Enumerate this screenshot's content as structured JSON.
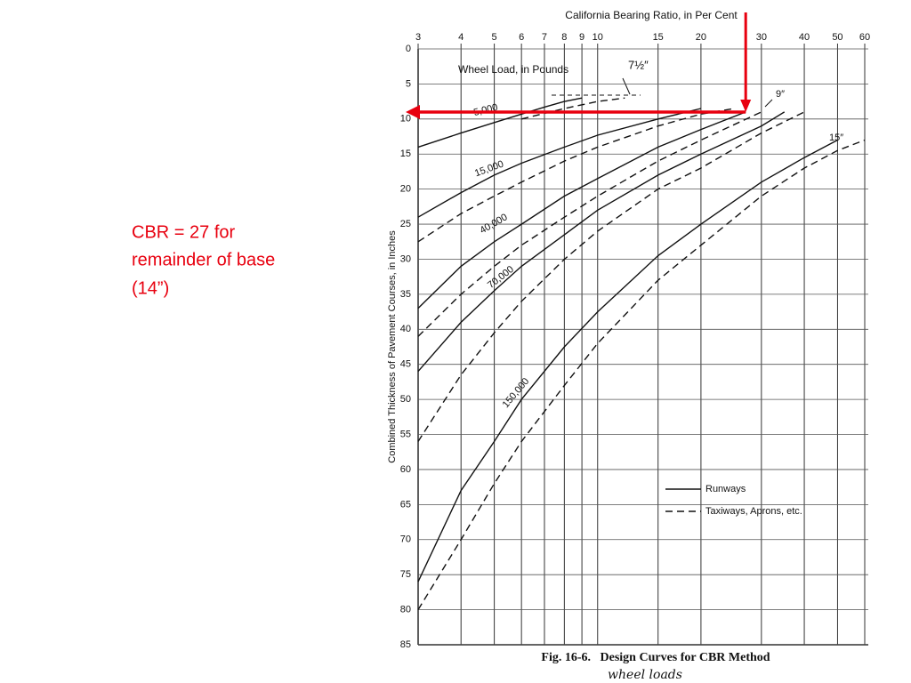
{
  "note_lines": [
    "CBR = 27 for",
    "remainder of base",
    "(14”)"
  ],
  "chart_data": {
    "type": "line",
    "title": "California Bearing Ratio, in Per Cent",
    "y_label": "Combined Thickness of Pavement Courses, in Inches",
    "caption": "Fig. 16-6.   Design Curves for CBR Method",
    "handwritten": "wheel loads",
    "x_log": true,
    "xlim": [
      3,
      60
    ],
    "xticks": [
      3,
      4,
      5,
      6,
      7,
      8,
      9,
      10,
      15,
      20,
      30,
      40,
      50,
      60
    ],
    "ylim": [
      0,
      85
    ],
    "y_inverted": true,
    "yticks": [
      0,
      5,
      10,
      15,
      20,
      25,
      30,
      35,
      40,
      45,
      50,
      55,
      60,
      65,
      70,
      75,
      80,
      85
    ],
    "grid": true,
    "color": "#111111",
    "annotations": [
      "Wheel Load, in Pounds",
      "7½″",
      "9″",
      "15″"
    ],
    "legend": [
      "Runways",
      "Taxiways, Aprons, etc."
    ],
    "legend_dashed": [
      false,
      true
    ],
    "series": [
      {
        "name": "5,000",
        "lines": [
          {
            "x": [
              3,
              4,
              5,
              6,
              7,
              8,
              9
            ],
            "values": [
              14,
              12,
              10.5,
              9.3,
              8.3,
              7.5,
              7
            ]
          },
          {
            "x": [
              6,
              8,
              10,
              12
            ],
            "values": [
              10,
              8.5,
              7.5,
              7
            ]
          }
        ]
      },
      {
        "name": "15,000",
        "lines": [
          {
            "x": [
              3,
              4,
              5,
              6,
              8,
              10,
              15,
              20
            ],
            "values": [
              24,
              20.5,
              18,
              16.3,
              14,
              12.3,
              10,
              8.5
            ]
          },
          {
            "x": [
              3,
              4,
              5,
              6,
              8,
              10,
              15,
              20,
              25
            ],
            "values": [
              27.5,
              23.5,
              21,
              19,
              16,
              14,
              11,
              9.3,
              8.5
            ]
          }
        ]
      },
      {
        "name": "40,000",
        "lines": [
          {
            "x": [
              3,
              4,
              5,
              6,
              8,
              10,
              15,
              20,
              27
            ],
            "values": [
              37,
              31,
              27.5,
              25,
              21,
              18.5,
              14,
              11.5,
              9
            ]
          },
          {
            "x": [
              3,
              4,
              5,
              6,
              8,
              10,
              15,
              20,
              30
            ],
            "values": [
              41,
              35,
              31,
              28,
              24,
              21,
              16,
              13,
              9
            ]
          }
        ]
      },
      {
        "name": "70,000",
        "lines": [
          {
            "x": [
              3,
              4,
              5,
              6,
              8,
              10,
              15,
              20,
              30,
              35
            ],
            "values": [
              46,
              39,
              34.5,
              31,
              26.5,
              23,
              18,
              15,
              11,
              9
            ]
          },
          {
            "x": [
              3,
              4,
              5,
              6,
              8,
              10,
              15,
              20,
              30,
              40
            ],
            "values": [
              56,
              46.5,
              40.5,
              36,
              30,
              26,
              20,
              17,
              12,
              9
            ]
          }
        ]
      },
      {
        "name": "150,000",
        "lines": [
          {
            "x": [
              3,
              4,
              5,
              6,
              8,
              10,
              15,
              20,
              30,
              40,
              50
            ],
            "values": [
              76,
              63,
              56,
              50,
              42.5,
              37.5,
              29.5,
              25,
              19,
              15.5,
              13
            ]
          },
          {
            "x": [
              3,
              4,
              5,
              6,
              8,
              10,
              15,
              20,
              30,
              40,
              50,
              60
            ],
            "values": [
              80,
              70,
              62,
              56,
              48,
              42,
              33,
              28,
              21,
              17,
              14.5,
              13
            ]
          }
        ]
      }
    ],
    "guide": {
      "x": 27,
      "y": 9,
      "color": "#e8000f"
    }
  }
}
